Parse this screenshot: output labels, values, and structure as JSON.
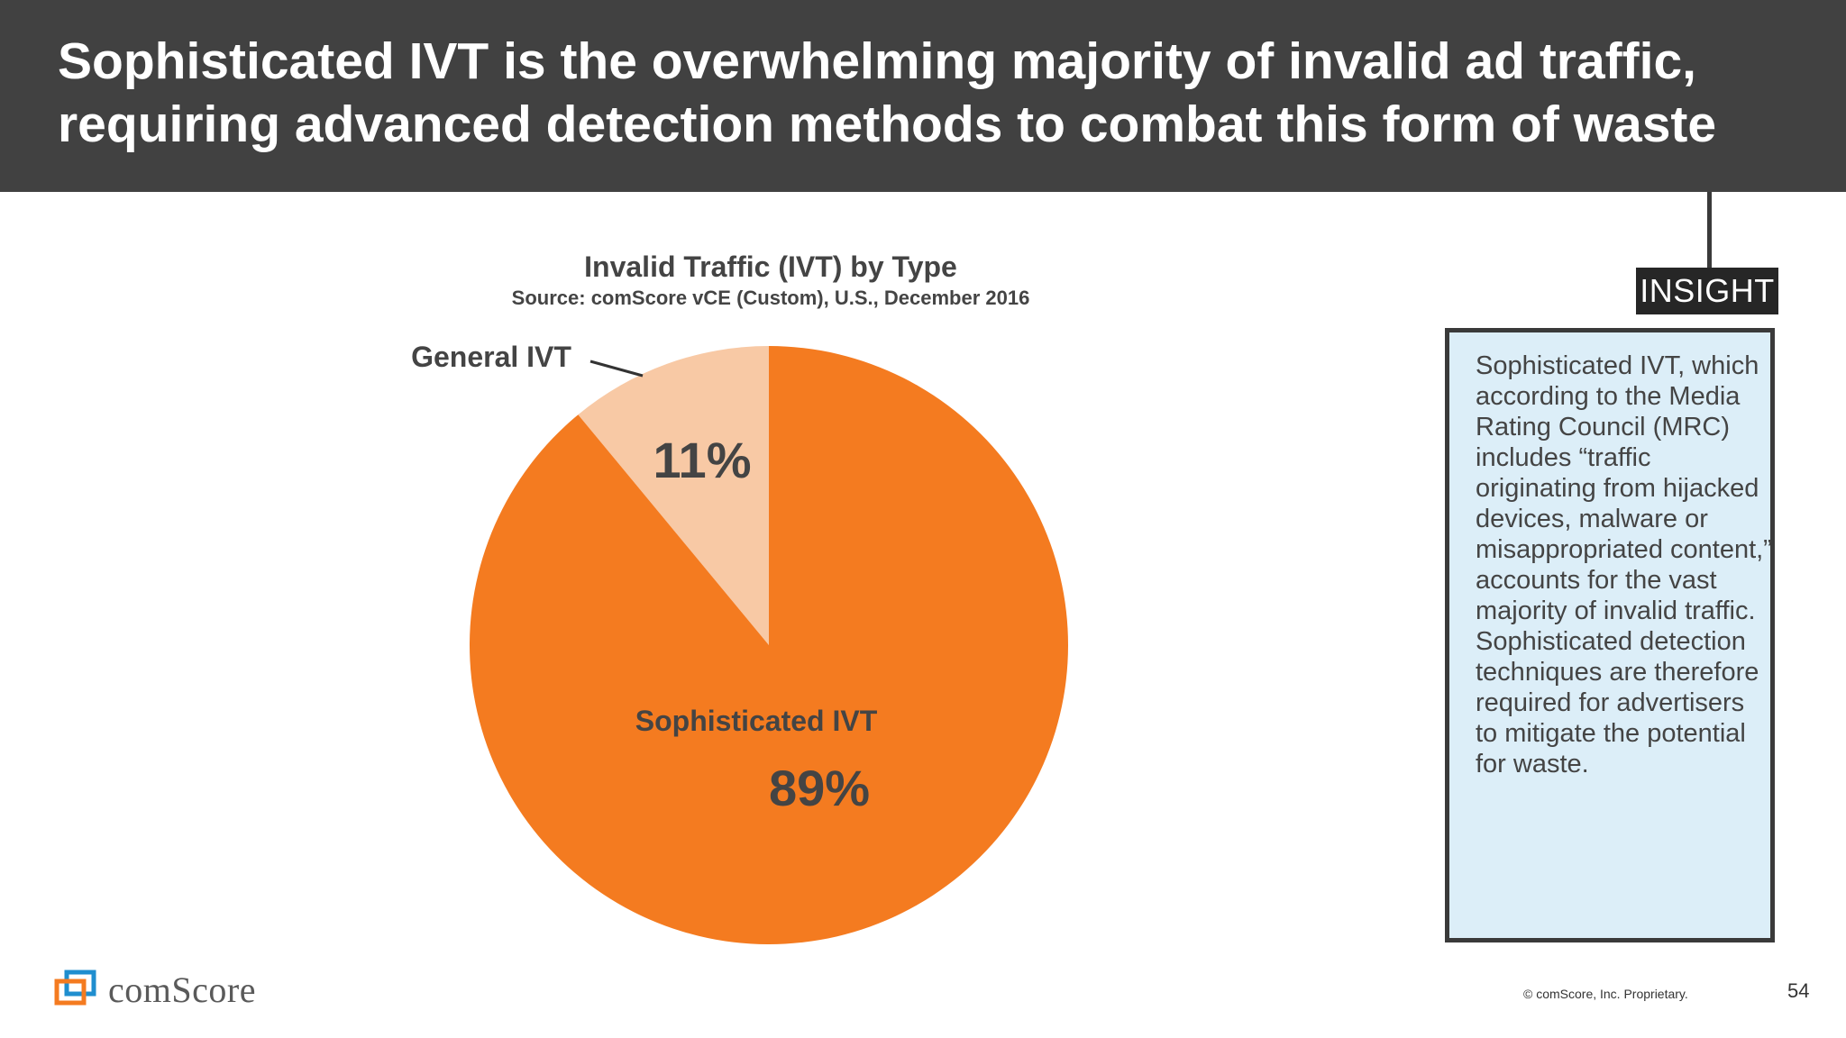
{
  "header": {
    "title_line1": "Sophisticated IVT is the overwhelming majority of invalid ad traffic,",
    "title_line2": "requiring advanced detection methods to combat this form of waste"
  },
  "chart_data": {
    "type": "pie",
    "title": "Invalid Traffic (IVT) by Type",
    "subtitle": "Source: comScore vCE (Custom), U.S., December 2016",
    "slices": [
      {
        "label": "General IVT",
        "value": 11,
        "value_label": "11%",
        "color": "#f8c9a5"
      },
      {
        "label": "Sophisticated IVT",
        "value": 89,
        "value_label": "89%",
        "color": "#f47b20"
      }
    ]
  },
  "insight": {
    "tag": "INSIGHT",
    "text": "Sophisticated IVT, which according to the Media Rating Council (MRC) includes “traffic originating from hijacked devices, malware or misappropriated content,” accounts for the vast majority of invalid traffic. Sophisticated detection techniques are therefore required for advertisers to mitigate the potential for waste."
  },
  "footer": {
    "logo_text": "comScore",
    "copyright": "© comScore, Inc. Proprietary.",
    "page_number": "54"
  },
  "colors": {
    "header_bg": "#414141",
    "accent_orange": "#f47b20",
    "light_orange": "#f8c9a5",
    "insight_bg": "#dceef8"
  }
}
